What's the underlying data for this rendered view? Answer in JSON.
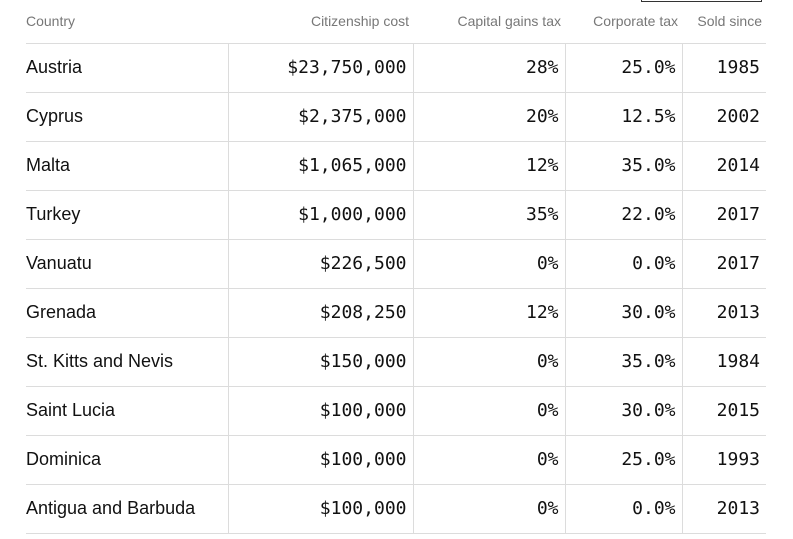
{
  "table": {
    "headers": {
      "country": "Country",
      "cost": "Citizenship cost",
      "capital_gains": "Capital gains tax",
      "corporate": "Corporate tax",
      "sold_since": "Sold since"
    },
    "rows": [
      {
        "country": "Austria",
        "cost": "$23,750,000",
        "capital_gains": "28%",
        "corporate": "25.0%",
        "sold_since": "1985"
      },
      {
        "country": "Cyprus",
        "cost": "$2,375,000",
        "capital_gains": "20%",
        "corporate": "12.5%",
        "sold_since": "2002"
      },
      {
        "country": "Malta",
        "cost": "$1,065,000",
        "capital_gains": "12%",
        "corporate": "35.0%",
        "sold_since": "2014"
      },
      {
        "country": "Turkey",
        "cost": "$1,000,000",
        "capital_gains": "35%",
        "corporate": "22.0%",
        "sold_since": "2017"
      },
      {
        "country": "Vanuatu",
        "cost": "$226,500",
        "capital_gains": "0%",
        "corporate": "0.0%",
        "sold_since": "2017"
      },
      {
        "country": "Grenada",
        "cost": "$208,250",
        "capital_gains": "12%",
        "corporate": "30.0%",
        "sold_since": "2013"
      },
      {
        "country": "St. Kitts and Nevis",
        "cost": "$150,000",
        "capital_gains": "0%",
        "corporate": "35.0%",
        "sold_since": "1984"
      },
      {
        "country": "Saint Lucia",
        "cost": "$100,000",
        "capital_gains": "0%",
        "corporate": "30.0%",
        "sold_since": "2015"
      },
      {
        "country": "Dominica",
        "cost": "$100,000",
        "capital_gains": "0%",
        "corporate": "25.0%",
        "sold_since": "1993"
      },
      {
        "country": "Antigua and Barbuda",
        "cost": "$100,000",
        "capital_gains": "0%",
        "corporate": "0.0%",
        "sold_since": "2013"
      }
    ]
  }
}
